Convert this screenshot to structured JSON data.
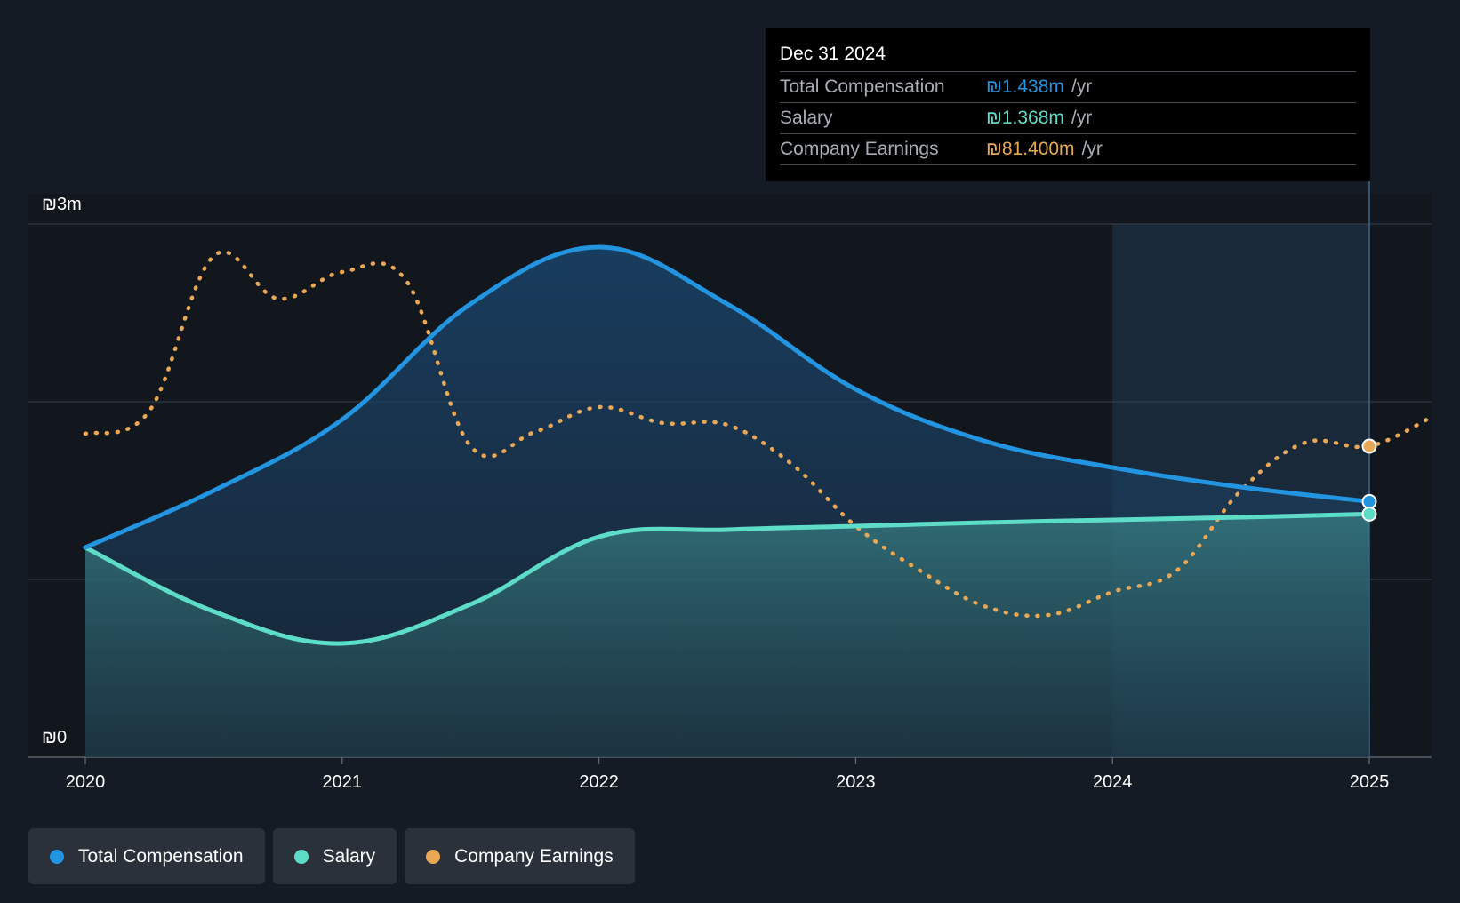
{
  "chart_data": {
    "type": "area",
    "x_ticks": [
      "2020",
      "2021",
      "2022",
      "2023",
      "2024",
      "2025"
    ],
    "y_ticks": [
      "₪0",
      "₪3m"
    ],
    "ylim": [
      0,
      3
    ],
    "grid": true,
    "series": [
      {
        "name": "Total Compensation",
        "color": "#2394e0",
        "x": [
          2020.0,
          2020.5,
          2021.0,
          2021.5,
          2022.0,
          2022.5,
          2023.0,
          2023.5,
          2024.0,
          2024.5,
          2025.0
        ],
        "values": [
          1.18,
          1.5,
          1.9,
          2.55,
          2.87,
          2.55,
          2.07,
          1.78,
          1.63,
          1.52,
          1.438
        ]
      },
      {
        "name": "Salary",
        "color": "#5ddcc8",
        "x": [
          2020.0,
          2020.5,
          2021.0,
          2021.5,
          2022.0,
          2022.5,
          2023.0,
          2023.5,
          2024.0,
          2024.5,
          2025.0
        ],
        "values": [
          1.18,
          0.82,
          0.64,
          0.86,
          1.24,
          1.28,
          1.3,
          1.32,
          1.335,
          1.35,
          1.368
        ]
      },
      {
        "name": "Company Earnings",
        "color": "#e8a855",
        "dashed": true,
        "x": [
          2020.0,
          2020.25,
          2020.5,
          2020.75,
          2021.0,
          2021.25,
          2021.5,
          2021.75,
          2022.0,
          2022.25,
          2022.5,
          2022.75,
          2023.0,
          2023.25,
          2023.5,
          2023.75,
          2024.0,
          2024.25,
          2024.5,
          2024.75,
          2025.0,
          2025.25
        ],
        "values": [
          1.82,
          1.95,
          2.82,
          2.58,
          2.73,
          2.68,
          1.75,
          1.83,
          1.97,
          1.88,
          1.87,
          1.65,
          1.3,
          1.05,
          0.85,
          0.8,
          0.93,
          1.05,
          1.5,
          1.77,
          1.75,
          1.92
        ]
      }
    ],
    "highlight_x": 2025.0
  },
  "tooltip": {
    "date": "Dec 31 2024",
    "rows": [
      {
        "name": "Total Compensation",
        "value": "₪1.438m",
        "unit": "/yr",
        "color": "#2394e0"
      },
      {
        "name": "Salary",
        "value": "₪1.368m",
        "unit": "/yr",
        "color": "#5ddcc8"
      },
      {
        "name": "Company Earnings",
        "value": "₪81.400m",
        "unit": "/yr",
        "color": "#e8a855"
      }
    ]
  },
  "legend": [
    {
      "label": "Total Compensation",
      "color": "#2394e0"
    },
    {
      "label": "Salary",
      "color": "#5ddcc8"
    },
    {
      "label": "Company Earnings",
      "color": "#e8a855"
    }
  ]
}
